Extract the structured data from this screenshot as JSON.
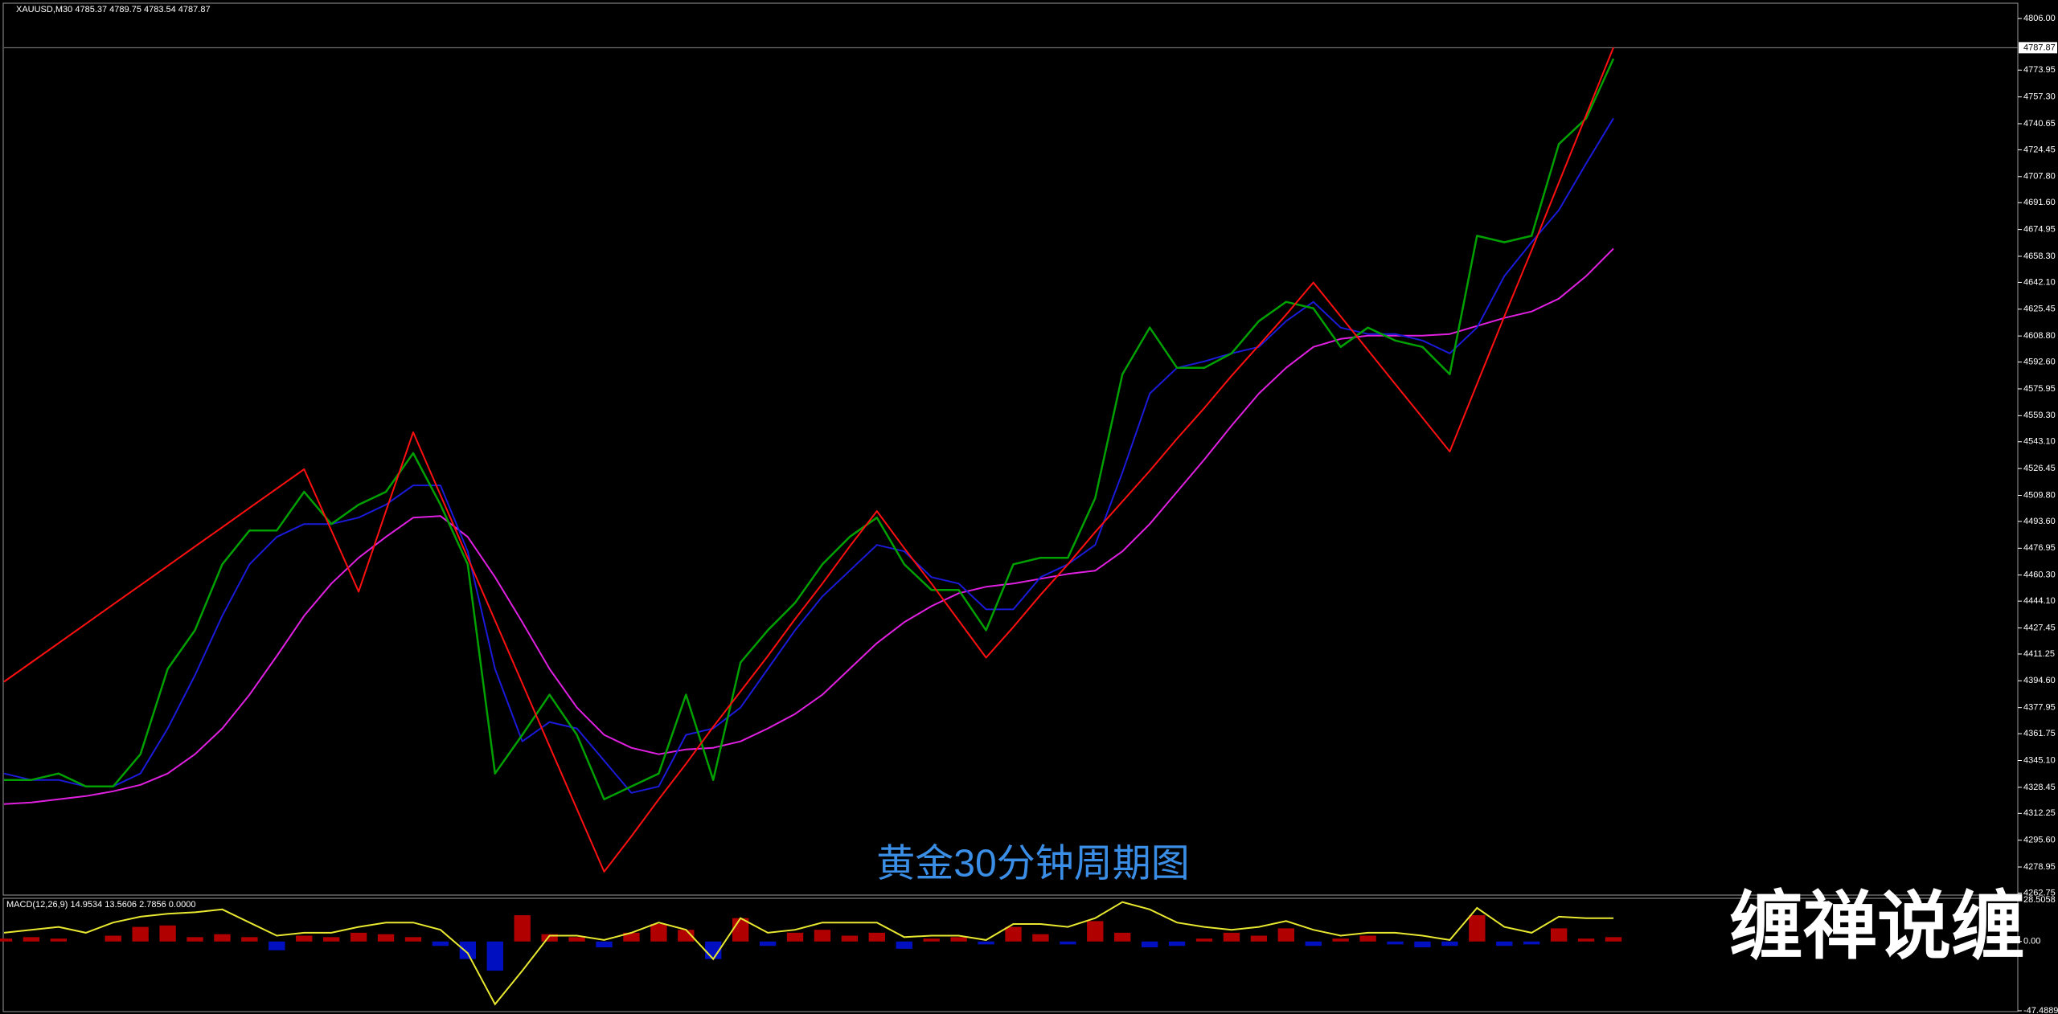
{
  "chart_data": [
    {
      "type": "line",
      "title": "XAUUSD,M30 4785.37 4789.75 4783.54 4787.87",
      "annotation": "黄金30分钟周期图",
      "ylim": [
        4262,
        4815
      ],
      "yticks": [
        {
          "value": 4806,
          "label": "4806.00"
        },
        {
          "value": 4773.95,
          "label": "4773.95"
        },
        {
          "value": 4757.3,
          "label": "4757.30"
        },
        {
          "value": 4740.65,
          "label": "4740.65"
        },
        {
          "value": 4724.45,
          "label": "4724.45"
        },
        {
          "value": 4707.8,
          "label": "4707.80"
        },
        {
          "value": 4691.6,
          "label": "4691.60"
        },
        {
          "value": 4674.95,
          "label": "4674.95"
        },
        {
          "value": 4658.3,
          "label": "4658.30"
        },
        {
          "value": 4642.1,
          "label": "4642.10"
        },
        {
          "value": 4625.45,
          "label": "4625.45"
        },
        {
          "value": 4608.8,
          "label": "4608.80"
        },
        {
          "value": 4592.6,
          "label": "4592.60"
        },
        {
          "value": 4575.95,
          "label": "4575.95"
        },
        {
          "value": 4559.3,
          "label": "4559.30"
        },
        {
          "value": 4543.1,
          "label": "4543.10"
        },
        {
          "value": 4526.45,
          "label": "4526.45"
        },
        {
          "value": 4509.8,
          "label": "4509.80"
        },
        {
          "value": 4493.6,
          "label": "4493.60"
        },
        {
          "value": 4476.95,
          "label": "4476.95"
        },
        {
          "value": 4460.3,
          "label": "4460.30"
        },
        {
          "value": 4444.1,
          "label": "4444.10"
        },
        {
          "value": 4427.45,
          "label": "4427.45"
        },
        {
          "value": 4411.25,
          "label": "4411.25"
        },
        {
          "value": 4394.6,
          "label": "4394.60"
        },
        {
          "value": 4377.95,
          "label": "4377.95"
        },
        {
          "value": 4361.75,
          "label": "4361.75"
        },
        {
          "value": 4345.1,
          "label": "4345.10"
        },
        {
          "value": 4328.45,
          "label": "4328.45"
        },
        {
          "value": 4312.25,
          "label": "4312.25"
        },
        {
          "value": 4295.6,
          "label": "4295.60"
        },
        {
          "value": 4278.95,
          "label": "4278.95"
        },
        {
          "value": 4262.75,
          "label": "4262.75"
        }
      ],
      "price_line": {
        "value": 4787.87,
        "label": "4787.87"
      },
      "series": [
        {
          "color": "#e020e0",
          "values": [
            4318,
            4319,
            4321,
            4323,
            4326,
            4330,
            4337,
            4349,
            4365,
            4386,
            4410,
            4435,
            4455,
            4471,
            4484,
            4496,
            4497,
            4484,
            4459,
            4431,
            4402,
            4378,
            4361,
            4353,
            4349,
            4352,
            4353,
            4357,
            4365,
            4374,
            4386,
            4402,
            4418,
            4431,
            4441,
            4449,
            4453,
            4455,
            4458,
            4461,
            4463,
            4475,
            4492,
            4512,
            4532,
            4553,
            4573,
            4589,
            4602,
            4607,
            4609,
            4609,
            4609,
            4610,
            4615,
            4620,
            4624,
            4632,
            4646,
            4663
          ]
        },
        {
          "color": "#1a1ad8",
          "values": [
            4337,
            4333,
            4333,
            4329,
            4329,
            4337,
            4365,
            4398,
            4435,
            4467,
            4484,
            4492,
            4492,
            4496,
            4504,
            4516,
            4516,
            4475,
            4402,
            4357,
            4369,
            4365,
            4345,
            4325,
            4329,
            4361,
            4365,
            4378,
            4402,
            4426,
            4447,
            4463,
            4479,
            4475,
            4459,
            4455,
            4439,
            4439,
            4459,
            4467,
            4479,
            4524,
            4573,
            4589,
            4593,
            4598,
            4602,
            4618,
            4630,
            4614,
            4610,
            4610,
            4606,
            4598,
            4614,
            4646,
            4667,
            4687,
            4716,
            4744
          ]
        },
        {
          "color": "#00a000",
          "values": [
            4333,
            4333,
            4337,
            4329,
            4329,
            4349,
            4402,
            4426,
            4467,
            4488,
            4488,
            4512,
            4492,
            4504,
            4512,
            4536,
            4504,
            4467,
            4337,
            4361,
            4386,
            4361,
            4321,
            4329,
            4337,
            4386,
            4333,
            4406,
            4426,
            4443,
            4467,
            4484,
            4496,
            4467,
            4451,
            4451,
            4426,
            4467,
            4471,
            4471,
            4508,
            4585,
            4614,
            4589,
            4589,
            4598,
            4618,
            4630,
            4626,
            4602,
            4614,
            4606,
            4602,
            4585,
            4671,
            4667,
            4671,
            4728,
            4744,
            4781
          ]
        },
        {
          "color": "#ff1010",
          "values": [
            4394,
            4406,
            4418,
            4430,
            4442,
            4454,
            4466,
            4478,
            4490,
            4502,
            4514,
            4526,
            4488,
            4450,
            4500,
            4549,
            4510,
            4471,
            4432,
            4393,
            4354,
            4315,
            4276,
            4298,
            4321,
            4343,
            4366,
            4388,
            4410,
            4433,
            4455,
            4478,
            4500,
            4477,
            4455,
            4432,
            4409,
            4428,
            4448,
            4467,
            4487,
            4506,
            4525,
            4545,
            4564,
            4584,
            4603,
            4622,
            4642,
            4621,
            4600,
            4579,
            4558,
            4537,
            4579,
            4621,
            4662,
            4704,
            4746,
            4788
          ]
        }
      ]
    },
    {
      "type": "macd",
      "title": "MACD(12,26,9) 14.9534 13.5606 2.7856 0.0000",
      "ylim": [
        -47.4889,
        28.5058
      ],
      "yticks": [
        28.5058,
        {
          "value": 0,
          "label": "0.00"
        },
        -47.4889
      ],
      "series": [
        {
          "style": "histogram",
          "color": "#b00000",
          "negative_color": "#0010c0",
          "values": [
            2,
            3,
            2,
            0,
            4,
            10,
            11,
            3,
            5,
            3,
            -6,
            4,
            3,
            6,
            5,
            3,
            -3,
            -12,
            -20,
            18,
            5,
            3,
            -4,
            6,
            12,
            8,
            -12,
            16,
            -3,
            6,
            8,
            4,
            6,
            -5,
            2,
            3,
            -2,
            10,
            5,
            -2,
            14,
            6,
            -4,
            -3,
            2,
            6,
            4,
            9,
            -3,
            2,
            4,
            -2,
            -4,
            -3,
            18,
            -3,
            -2,
            9,
            2,
            3
          ]
        },
        {
          "style": "line",
          "color": "#e8e830",
          "values": [
            6,
            8,
            10,
            6,
            13,
            17,
            19,
            20,
            22,
            13,
            4,
            6,
            6,
            10,
            13,
            13,
            8,
            -8,
            -43,
            -20,
            4,
            4,
            1,
            6,
            13,
            8,
            -12,
            16,
            6,
            8,
            13,
            13,
            13,
            3,
            4,
            4,
            1,
            12,
            12,
            10,
            16,
            27,
            22,
            13,
            10,
            8,
            10,
            14,
            8,
            4,
            6,
            6,
            4,
            1,
            23,
            10,
            6,
            17,
            16,
            16
          ]
        }
      ]
    }
  ],
  "watermark": "缠禅说缠"
}
